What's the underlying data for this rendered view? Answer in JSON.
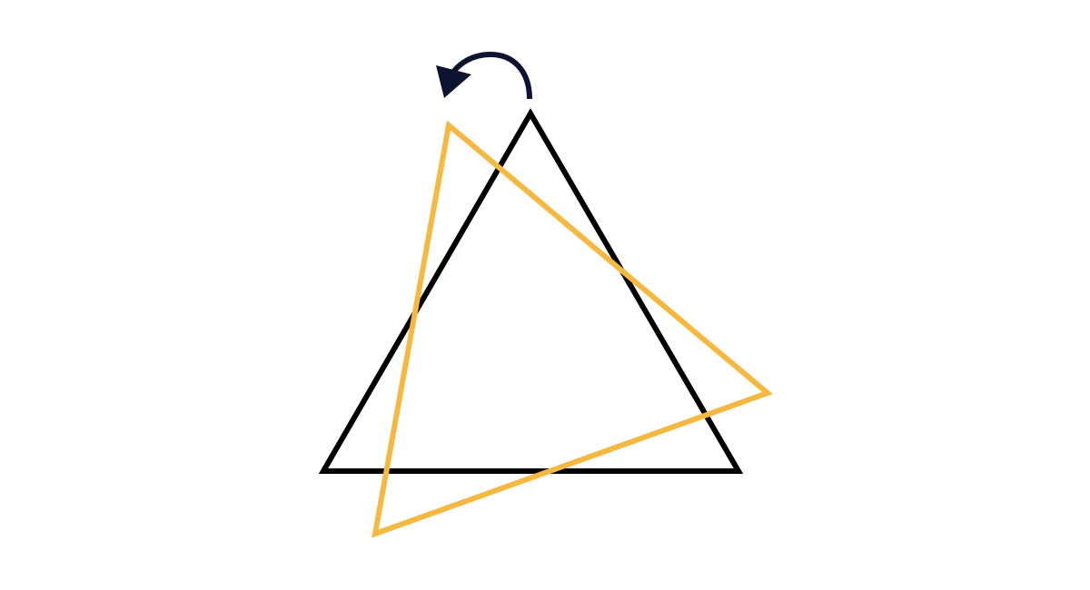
{
  "diagram": {
    "type": "rotation",
    "shapes": [
      {
        "name": "original-triangle",
        "shape": "triangle",
        "color": "#000000"
      },
      {
        "name": "rotated-triangle",
        "shape": "triangle",
        "color": "#f5b942"
      }
    ],
    "rotation_arrow": {
      "icon": "counterclockwise-arrow-icon",
      "direction": "counterclockwise",
      "color": "#0d1330"
    },
    "background": "#ffffff"
  }
}
